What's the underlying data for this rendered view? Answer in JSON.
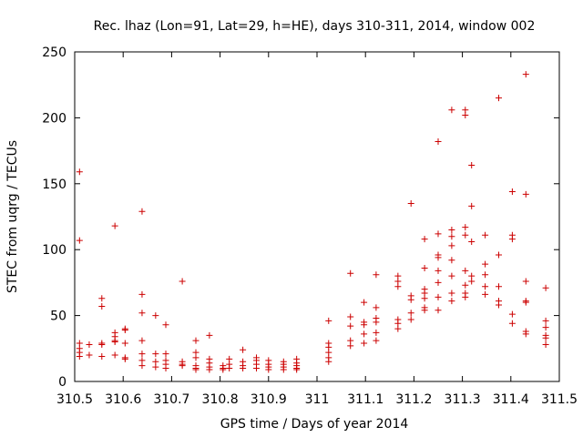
{
  "chart_data": {
    "type": "scatter",
    "title": "Rec. lhaz (Lon=91, Lat=29, h=HE), days 310-311, 2014, window 002",
    "xlabel": "GPS time / Days of year 2014",
    "ylabel": "STEC from uqrg / TECUs",
    "xlim": [
      310.5,
      311.5
    ],
    "ylim": [
      0,
      250
    ],
    "x_ticks": [
      310.5,
      310.6,
      310.7,
      310.8,
      310.9,
      311,
      311.1,
      311.2,
      311.3,
      311.4,
      311.5
    ],
    "x_tick_labels": [
      "310.5",
      "310.6",
      "310.7",
      "310.8",
      "310.9",
      "311",
      "311.1",
      "311.2",
      "311.3",
      "311.4",
      "311.5"
    ],
    "y_ticks": [
      0,
      50,
      100,
      150,
      200,
      250
    ],
    "y_tick_labels": [
      "0",
      "50",
      "100",
      "150",
      "200",
      "250"
    ],
    "grid": false,
    "marker": "plus",
    "color": "#cc0000",
    "points": [
      [
        310.51,
        159
      ],
      [
        310.51,
        107
      ],
      [
        310.51,
        29
      ],
      [
        310.51,
        25
      ],
      [
        310.51,
        22
      ],
      [
        310.51,
        19
      ],
      [
        310.53,
        28
      ],
      [
        310.53,
        20
      ],
      [
        310.556,
        63
      ],
      [
        310.556,
        57
      ],
      [
        310.556,
        29
      ],
      [
        310.556,
        28
      ],
      [
        310.556,
        19
      ],
      [
        310.583,
        118
      ],
      [
        310.583,
        37
      ],
      [
        310.583,
        34
      ],
      [
        310.583,
        31
      ],
      [
        310.583,
        30
      ],
      [
        310.583,
        20
      ],
      [
        310.604,
        40
      ],
      [
        310.604,
        39
      ],
      [
        310.604,
        29
      ],
      [
        310.604,
        18
      ],
      [
        310.604,
        17
      ],
      [
        310.639,
        129
      ],
      [
        310.639,
        66
      ],
      [
        310.639,
        52
      ],
      [
        310.639,
        31
      ],
      [
        310.639,
        21
      ],
      [
        310.639,
        16
      ],
      [
        310.639,
        12
      ],
      [
        310.667,
        50
      ],
      [
        310.667,
        21
      ],
      [
        310.667,
        15
      ],
      [
        310.667,
        11
      ],
      [
        310.688,
        43
      ],
      [
        310.688,
        21
      ],
      [
        310.688,
        16
      ],
      [
        310.688,
        13
      ],
      [
        310.688,
        10
      ],
      [
        310.722,
        76
      ],
      [
        310.722,
        15
      ],
      [
        310.722,
        13
      ],
      [
        310.722,
        12
      ],
      [
        310.75,
        31
      ],
      [
        310.75,
        22
      ],
      [
        310.75,
        18
      ],
      [
        310.75,
        12
      ],
      [
        310.75,
        10
      ],
      [
        310.75,
        9
      ],
      [
        310.778,
        35
      ],
      [
        310.778,
        17
      ],
      [
        310.778,
        14
      ],
      [
        310.778,
        11
      ],
      [
        310.778,
        9
      ],
      [
        310.806,
        12
      ],
      [
        310.806,
        10
      ],
      [
        310.806,
        9
      ],
      [
        310.819,
        17
      ],
      [
        310.819,
        13
      ],
      [
        310.819,
        10
      ],
      [
        310.847,
        24
      ],
      [
        310.847,
        15
      ],
      [
        310.847,
        12
      ],
      [
        310.847,
        10
      ],
      [
        310.875,
        18
      ],
      [
        310.875,
        16
      ],
      [
        310.875,
        13
      ],
      [
        310.875,
        10
      ],
      [
        310.9,
        16
      ],
      [
        310.9,
        13
      ],
      [
        310.9,
        11
      ],
      [
        310.9,
        9
      ],
      [
        310.931,
        15
      ],
      [
        310.931,
        13
      ],
      [
        310.931,
        11
      ],
      [
        310.931,
        9
      ],
      [
        310.958,
        17
      ],
      [
        310.958,
        14
      ],
      [
        310.958,
        12
      ],
      [
        310.958,
        10
      ],
      [
        310.958,
        9
      ],
      [
        311.024,
        46
      ],
      [
        311.024,
        29
      ],
      [
        311.024,
        26
      ],
      [
        311.024,
        22
      ],
      [
        311.024,
        18
      ],
      [
        311.024,
        15
      ],
      [
        311.069,
        82
      ],
      [
        311.069,
        49
      ],
      [
        311.069,
        42
      ],
      [
        311.069,
        31
      ],
      [
        311.069,
        27
      ],
      [
        311.097,
        60
      ],
      [
        311.097,
        45
      ],
      [
        311.097,
        43
      ],
      [
        311.097,
        36
      ],
      [
        311.097,
        29
      ],
      [
        311.122,
        81
      ],
      [
        311.122,
        56
      ],
      [
        311.122,
        48
      ],
      [
        311.122,
        45
      ],
      [
        311.122,
        37
      ],
      [
        311.122,
        31
      ],
      [
        311.167,
        80
      ],
      [
        311.167,
        76
      ],
      [
        311.167,
        72
      ],
      [
        311.167,
        47
      ],
      [
        311.167,
        44
      ],
      [
        311.167,
        40
      ],
      [
        311.194,
        135
      ],
      [
        311.194,
        65
      ],
      [
        311.194,
        62
      ],
      [
        311.194,
        52
      ],
      [
        311.194,
        47
      ],
      [
        311.222,
        108
      ],
      [
        311.222,
        86
      ],
      [
        311.222,
        70
      ],
      [
        311.222,
        67
      ],
      [
        311.222,
        63
      ],
      [
        311.222,
        56
      ],
      [
        311.222,
        54
      ],
      [
        311.25,
        182
      ],
      [
        311.25,
        112
      ],
      [
        311.25,
        96
      ],
      [
        311.25,
        94
      ],
      [
        311.25,
        84
      ],
      [
        311.25,
        75
      ],
      [
        311.25,
        64
      ],
      [
        311.25,
        54
      ],
      [
        311.278,
        206
      ],
      [
        311.278,
        115
      ],
      [
        311.278,
        110
      ],
      [
        311.278,
        103
      ],
      [
        311.278,
        92
      ],
      [
        311.278,
        80
      ],
      [
        311.278,
        67
      ],
      [
        311.278,
        61
      ],
      [
        311.306,
        206
      ],
      [
        311.306,
        202
      ],
      [
        311.306,
        117
      ],
      [
        311.306,
        111
      ],
      [
        311.306,
        84
      ],
      [
        311.306,
        73
      ],
      [
        311.306,
        67
      ],
      [
        311.306,
        64
      ],
      [
        311.319,
        164
      ],
      [
        311.319,
        133
      ],
      [
        311.319,
        106
      ],
      [
        311.319,
        80
      ],
      [
        311.319,
        76
      ],
      [
        311.347,
        111
      ],
      [
        311.347,
        89
      ],
      [
        311.347,
        81
      ],
      [
        311.347,
        72
      ],
      [
        311.347,
        66
      ],
      [
        311.375,
        215
      ],
      [
        311.375,
        96
      ],
      [
        311.375,
        72
      ],
      [
        311.375,
        61
      ],
      [
        311.375,
        58
      ],
      [
        311.403,
        144
      ],
      [
        311.403,
        111
      ],
      [
        311.403,
        108
      ],
      [
        311.403,
        51
      ],
      [
        311.403,
        44
      ],
      [
        311.431,
        233
      ],
      [
        311.431,
        142
      ],
      [
        311.431,
        76
      ],
      [
        311.431,
        61
      ],
      [
        311.431,
        60
      ],
      [
        311.431,
        38
      ],
      [
        311.431,
        36
      ],
      [
        311.472,
        71
      ],
      [
        311.472,
        46
      ],
      [
        311.472,
        41
      ],
      [
        311.472,
        35
      ],
      [
        311.472,
        33
      ],
      [
        311.472,
        28
      ]
    ]
  }
}
